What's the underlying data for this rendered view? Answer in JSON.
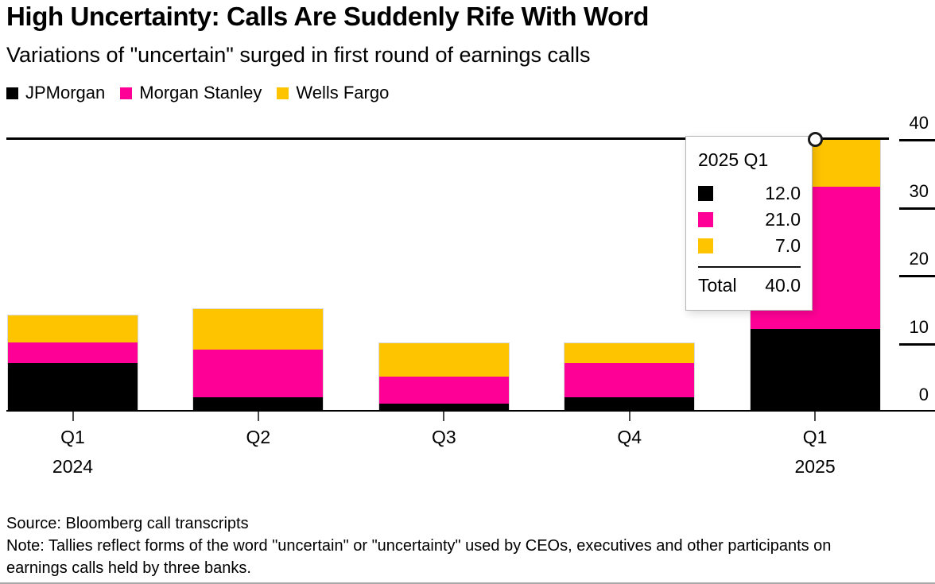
{
  "header": {
    "title": "High Uncertainty: Calls Are Suddenly Rife With Word",
    "subtitle": "Variations of \"uncertain\" surged in first round of earnings calls"
  },
  "legend": {
    "items": [
      {
        "label": "JPMorgan",
        "color": "#000000"
      },
      {
        "label": "Morgan Stanley",
        "color": "#FF0096"
      },
      {
        "label": "Wells Fargo",
        "color": "#FFC400"
      }
    ]
  },
  "chart_data": {
    "type": "bar",
    "stacked": true,
    "title": "High Uncertainty: Calls Are Suddenly Rife With Word",
    "subtitle": "Variations of \"uncertain\" surged in first round of earnings calls",
    "categories": [
      "Q1 2024",
      "Q2 2024",
      "Q3 2024",
      "Q4 2024",
      "Q1 2025"
    ],
    "x_tick_labels": [
      {
        "quarter": "Q1",
        "year": "2024"
      },
      {
        "quarter": "Q2",
        "year": ""
      },
      {
        "quarter": "Q3",
        "year": ""
      },
      {
        "quarter": "Q4",
        "year": ""
      },
      {
        "quarter": "Q1",
        "year": "2025"
      }
    ],
    "series": [
      {
        "name": "JPMorgan",
        "color": "#000000",
        "values": [
          7,
          2,
          1,
          2,
          12
        ]
      },
      {
        "name": "Morgan Stanley",
        "color": "#FF0096",
        "values": [
          3,
          7,
          4,
          5,
          21
        ]
      },
      {
        "name": "Wells Fargo",
        "color": "#FFC400",
        "values": [
          4,
          6,
          5,
          3,
          7
        ]
      }
    ],
    "totals": [
      14,
      15,
      10,
      10,
      40
    ],
    "xlabel": "",
    "ylabel": "",
    "ylim": [
      0,
      40
    ],
    "yticks": [
      0,
      10,
      20,
      30,
      40
    ],
    "grid": "top-gridline-and-baseline-only",
    "legend_position": "top-left",
    "y_axis_side": "right"
  },
  "tooltip": {
    "title": "2025 Q1",
    "rows": [
      {
        "series": "JPMorgan",
        "color": "#000000",
        "value": "12.0"
      },
      {
        "series": "Morgan Stanley",
        "color": "#FF0096",
        "value": "21.0"
      },
      {
        "series": "Wells Fargo",
        "color": "#FFC400",
        "value": "7.0"
      }
    ],
    "total_label": "Total",
    "total_value": "40.0"
  },
  "footer": {
    "source": "Source: Bloomberg call transcripts",
    "note": "Note: Tallies reflect forms of the word \"uncertain\" or \"uncertainty\" used by CEOs, executives and other participants on earnings calls held by three banks."
  }
}
